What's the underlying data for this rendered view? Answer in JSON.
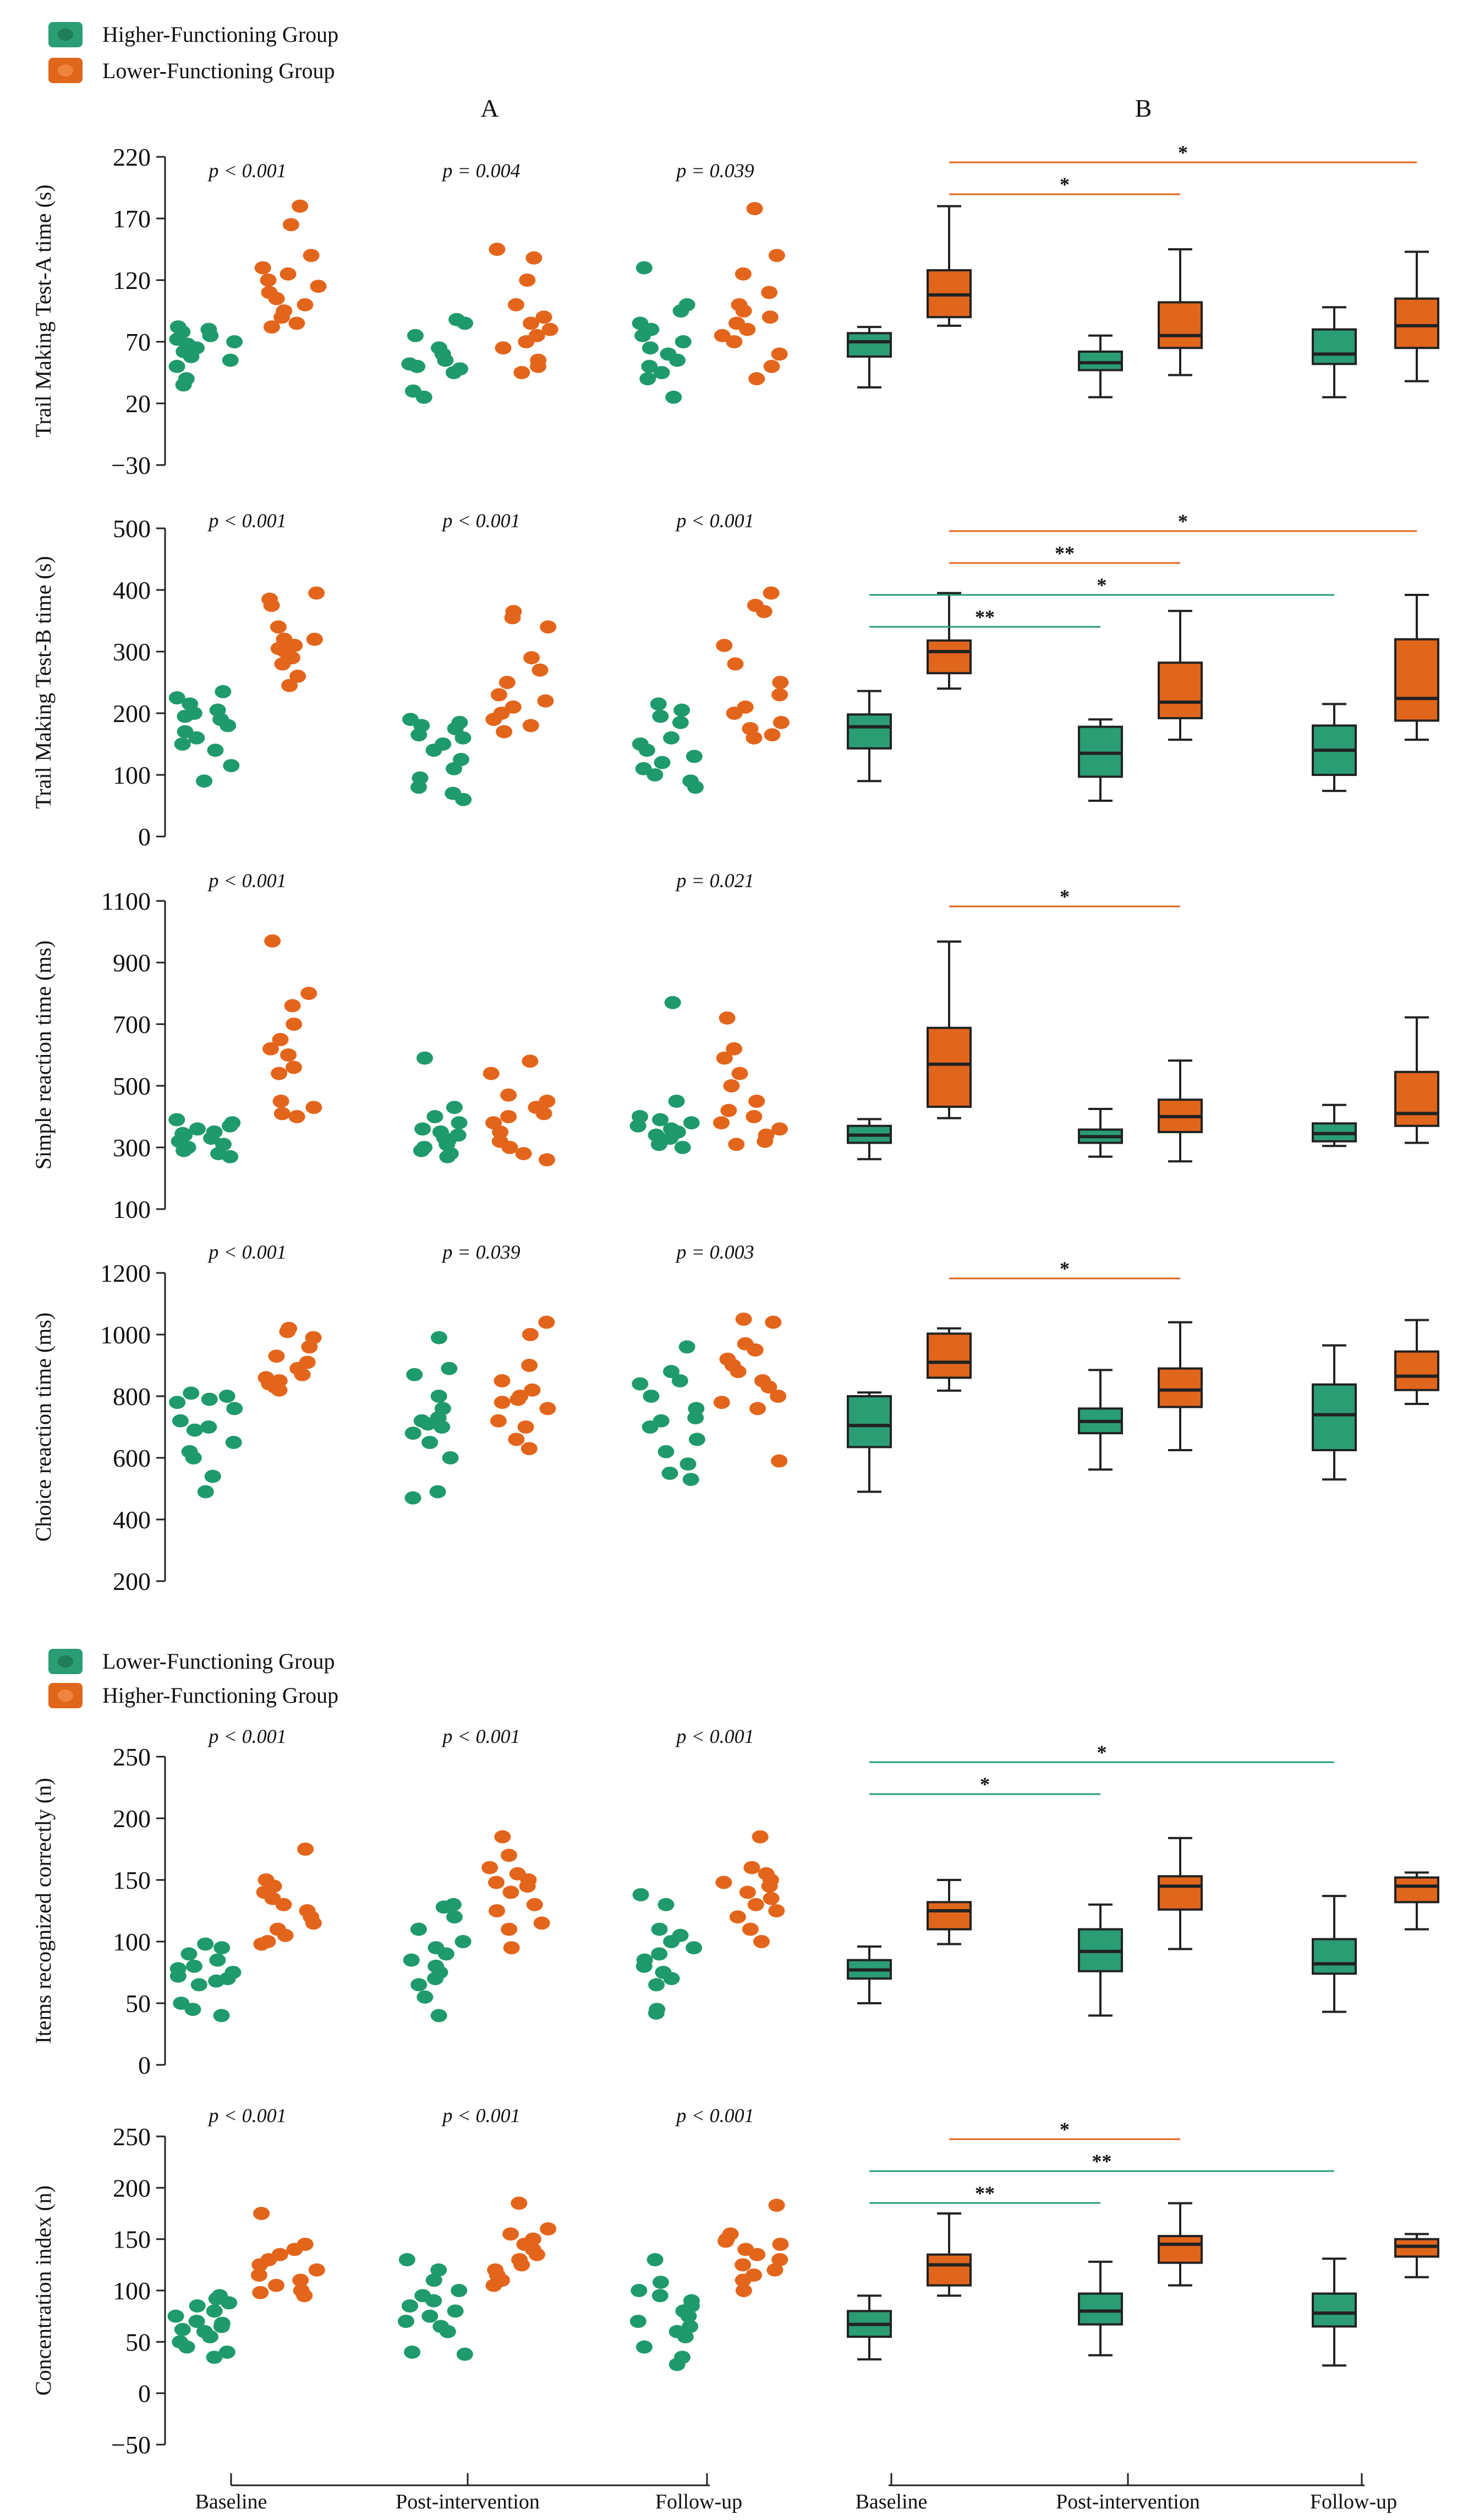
{
  "legend1": {
    "items": [
      {
        "label": "Higher-Functioning Group",
        "color": "#2a9d74"
      },
      {
        "label": "Lower-Functioning Group",
        "color": "#e0661c"
      }
    ]
  },
  "legend2": {
    "items": [
      {
        "label": "Lower-Functioning Group",
        "color": "#2a9d74"
      },
      {
        "label": "Higher-Functioning Group",
        "color": "#e0661c"
      }
    ]
  },
  "panel_labels": {
    "a": "A",
    "b": "B"
  },
  "x_labels_left": [
    "Baseline",
    "Post-intervention",
    "Follow-up"
  ],
  "x_labels_right": [
    "Baseline",
    "Post-intervention",
    "Follow-up"
  ],
  "colors": {
    "green": "#2a9d74",
    "orange": "#e0661c",
    "axis": "#222222"
  },
  "chart_data": [
    {
      "type": "scatter+box",
      "ylabel": "Trail Making Test-A time (s)",
      "ylim": [
        -30,
        220
      ],
      "yticks": [
        220,
        170,
        120,
        70,
        20,
        -30
      ],
      "ytick_labels": [
        "220",
        "170",
        "120",
        "70",
        "20",
        "−30"
      ],
      "p_values": [
        "p < 0.001",
        "p = 0.004",
        "p = 0.039"
      ],
      "scatter": [
        {
          "green": [
            80,
            78,
            75,
            72,
            70,
            68,
            65,
            62,
            58,
            55,
            50,
            40,
            35,
            82
          ],
          "orange": [
            180,
            165,
            140,
            130,
            125,
            115,
            110,
            105,
            100,
            95,
            90,
            85,
            82,
            120
          ]
        },
        {
          "green": [
            88,
            85,
            75,
            65,
            60,
            55,
            52,
            50,
            48,
            45,
            30,
            25
          ],
          "orange": [
            145,
            138,
            120,
            100,
            90,
            85,
            80,
            75,
            70,
            65,
            55,
            50,
            45
          ]
        },
        {
          "green": [
            130,
            100,
            95,
            85,
            80,
            75,
            70,
            65,
            60,
            55,
            50,
            45,
            40,
            25
          ],
          "orange": [
            178,
            140,
            125,
            110,
            100,
            95,
            90,
            85,
            80,
            75,
            70,
            60,
            50,
            40
          ]
        }
      ],
      "boxes": [
        {
          "green": [
            33,
            58,
            70,
            77,
            82
          ],
          "orange": [
            83,
            90,
            108,
            128,
            180
          ]
        },
        {
          "green": [
            25,
            47,
            53,
            62,
            75
          ],
          "orange": [
            43,
            65,
            75,
            102,
            145
          ]
        },
        {
          "green": [
            25,
            52,
            60,
            80,
            98
          ],
          "orange": [
            38,
            65,
            83,
            105,
            143
          ]
        }
      ],
      "sig": [
        {
          "from": 0,
          "to": 2,
          "label": "*",
          "color": "orange"
        },
        {
          "from": 0,
          "to": 1,
          "label": "*",
          "color": "orange"
        }
      ]
    },
    {
      "type": "scatter+box",
      "ylabel": "Trail Making Test-B time (s)",
      "ylim": [
        0,
        500
      ],
      "yticks": [
        500,
        400,
        300,
        200,
        100,
        0
      ],
      "ytick_labels": [
        "500",
        "400",
        "300",
        "200",
        "100",
        "0"
      ],
      "p_values": [
        "p < 0.001",
        "p < 0.001",
        "p < 0.001"
      ],
      "scatter": [
        {
          "green": [
            235,
            225,
            215,
            205,
            200,
            195,
            190,
            180,
            170,
            160,
            150,
            140,
            115,
            90
          ],
          "orange": [
            395,
            385,
            375,
            340,
            320,
            310,
            305,
            300,
            290,
            280,
            260,
            245,
            320
          ]
        },
        {
          "green": [
            190,
            185,
            175,
            165,
            160,
            150,
            140,
            125,
            110,
            95,
            80,
            70,
            60,
            180
          ],
          "orange": [
            365,
            355,
            340,
            290,
            270,
            250,
            230,
            220,
            210,
            200,
            190,
            180,
            170
          ]
        },
        {
          "green": [
            215,
            205,
            195,
            185,
            160,
            150,
            140,
            130,
            120,
            110,
            100,
            90,
            80
          ],
          "orange": [
            395,
            375,
            365,
            310,
            280,
            250,
            230,
            210,
            200,
            185,
            175,
            165,
            160
          ]
        }
      ],
      "boxes": [
        {
          "green": [
            90,
            143,
            178,
            198,
            236
          ],
          "orange": [
            240,
            265,
            300,
            318,
            395
          ]
        },
        {
          "green": [
            58,
            97,
            135,
            178,
            190
          ],
          "orange": [
            157,
            192,
            218,
            282,
            366
          ]
        },
        {
          "green": [
            74,
            100,
            140,
            180,
            215
          ],
          "orange": [
            157,
            188,
            224,
            320,
            392
          ]
        }
      ],
      "sig": [
        {
          "from": 0,
          "to": 2,
          "label": "*",
          "color": "orange"
        },
        {
          "from": 0,
          "to": 1,
          "label": "**",
          "color": "orange"
        },
        {
          "from": 0,
          "to": 2,
          "label": "*",
          "color": "green"
        },
        {
          "from": 0,
          "to": 1,
          "label": "**",
          "color": "green"
        }
      ]
    },
    {
      "type": "scatter+box",
      "ylabel": "Simple reaction time (ms)",
      "ylim": [
        100,
        1100
      ],
      "yticks": [
        1100,
        900,
        700,
        500,
        300,
        100
      ],
      "ytick_labels": [
        "1100",
        "900",
        "700",
        "500",
        "300",
        "100"
      ],
      "p_values": [
        "p < 0.001",
        "",
        "p = 0.021"
      ],
      "scatter": [
        {
          "green": [
            390,
            380,
            370,
            360,
            350,
            345,
            340,
            330,
            320,
            310,
            300,
            290,
            280,
            270
          ],
          "orange": [
            970,
            800,
            760,
            700,
            650,
            620,
            600,
            560,
            540,
            450,
            430,
            410,
            400
          ]
        },
        {
          "green": [
            590,
            430,
            400,
            380,
            360,
            350,
            340,
            330,
            320,
            310,
            300,
            290,
            280,
            270
          ],
          "orange": [
            580,
            540,
            470,
            450,
            430,
            410,
            400,
            380,
            350,
            320,
            300,
            280,
            260
          ]
        },
        {
          "green": [
            770,
            450,
            400,
            390,
            380,
            370,
            360,
            350,
            340,
            330,
            320,
            310,
            300
          ],
          "orange": [
            720,
            620,
            590,
            540,
            500,
            450,
            420,
            400,
            380,
            360,
            340,
            320,
            310
          ]
        }
      ],
      "boxes": [
        {
          "green": [
            262,
            315,
            340,
            370,
            392
          ],
          "orange": [
            395,
            432,
            570,
            688,
            968
          ]
        },
        {
          "green": [
            270,
            315,
            335,
            358,
            425
          ],
          "orange": [
            255,
            350,
            400,
            455,
            582
          ]
        },
        {
          "green": [
            305,
            320,
            345,
            378,
            438
          ],
          "orange": [
            315,
            370,
            410,
            545,
            722
          ]
        }
      ],
      "sig": [
        {
          "from": 0,
          "to": 1,
          "label": "*",
          "color": "orange"
        }
      ]
    },
    {
      "type": "scatter+box",
      "ylabel": "Choice reaction time (ms)",
      "ylim": [
        200,
        1200
      ],
      "yticks": [
        1200,
        1000,
        800,
        600,
        400,
        200
      ],
      "ytick_labels": [
        "1200",
        "1000",
        "800",
        "600",
        "400",
        "200"
      ],
      "p_values": [
        "p < 0.001",
        "p = 0.039",
        "p = 0.003"
      ],
      "scatter": [
        {
          "green": [
            810,
            800,
            790,
            780,
            760,
            720,
            700,
            690,
            650,
            620,
            600,
            540,
            490
          ],
          "orange": [
            1020,
            1010,
            990,
            960,
            930,
            910,
            890,
            870,
            860,
            850,
            840,
            830,
            820
          ]
        },
        {
          "green": [
            990,
            890,
            870,
            800,
            760,
            730,
            720,
            710,
            700,
            680,
            650,
            600,
            490,
            470
          ],
          "orange": [
            1040,
            1000,
            900,
            850,
            820,
            800,
            790,
            780,
            760,
            720,
            700,
            660,
            630
          ]
        },
        {
          "green": [
            960,
            880,
            850,
            840,
            800,
            760,
            730,
            720,
            700,
            660,
            620,
            580,
            550,
            530
          ],
          "orange": [
            1050,
            1040,
            970,
            950,
            920,
            900,
            880,
            850,
            830,
            800,
            780,
            760,
            590
          ]
        }
      ],
      "boxes": [
        {
          "green": [
            490,
            635,
            705,
            800,
            812
          ],
          "orange": [
            818,
            860,
            910,
            1003,
            1020
          ]
        },
        {
          "green": [
            562,
            680,
            718,
            760,
            885
          ],
          "orange": [
            625,
            765,
            820,
            890,
            1040
          ]
        },
        {
          "green": [
            530,
            625,
            740,
            838,
            965
          ],
          "orange": [
            775,
            820,
            865,
            945,
            1047
          ]
        }
      ],
      "sig": [
        {
          "from": 0,
          "to": 1,
          "label": "*",
          "color": "orange"
        }
      ]
    },
    {
      "type": "scatter+box",
      "ylabel": "Items recognized correctly (n)",
      "ylim": [
        0,
        250
      ],
      "yticks": [
        250,
        200,
        150,
        100,
        50,
        0
      ],
      "ytick_labels": [
        "250",
        "200",
        "150",
        "100",
        "50",
        "0"
      ],
      "p_values": [
        "p < 0.001",
        "p < 0.001",
        "p < 0.001"
      ],
      "scatter": [
        {
          "green": [
            98,
            95,
            90,
            85,
            80,
            78,
            75,
            72,
            70,
            68,
            65,
            50,
            45,
            40
          ],
          "orange": [
            175,
            150,
            145,
            140,
            135,
            130,
            125,
            120,
            115,
            110,
            105,
            100,
            98
          ]
        },
        {
          "green": [
            130,
            128,
            120,
            110,
            100,
            95,
            90,
            85,
            80,
            75,
            70,
            65,
            55,
            40
          ],
          "orange": [
            185,
            170,
            160,
            155,
            150,
            148,
            145,
            140,
            130,
            125,
            115,
            110,
            95
          ]
        },
        {
          "green": [
            138,
            130,
            110,
            105,
            100,
            95,
            90,
            85,
            80,
            75,
            70,
            65,
            45,
            42
          ],
          "orange": [
            185,
            160,
            155,
            150,
            148,
            145,
            140,
            135,
            130,
            125,
            120,
            110,
            100
          ]
        }
      ],
      "boxes": [
        {
          "green": [
            50,
            70,
            77,
            85,
            96
          ],
          "orange": [
            98,
            110,
            125,
            132,
            150
          ]
        },
        {
          "green": [
            40,
            76,
            92,
            110,
            130
          ],
          "orange": [
            94,
            126,
            145,
            153,
            184
          ]
        },
        {
          "green": [
            43,
            74,
            82,
            102,
            137
          ],
          "orange": [
            110,
            132,
            145,
            152,
            156
          ]
        }
      ],
      "sig": [
        {
          "from": 0,
          "to": 2,
          "label": "*",
          "color": "green"
        },
        {
          "from": 0,
          "to": 1,
          "label": "*",
          "color": "green"
        }
      ]
    },
    {
      "type": "scatter+box",
      "ylabel": "Concentration index (n)",
      "ylim": [
        -50,
        250
      ],
      "yticks": [
        250,
        200,
        150,
        100,
        50,
        0,
        -50
      ],
      "ytick_labels": [
        "250",
        "200",
        "150",
        "100",
        "50",
        "0",
        "−50"
      ],
      "p_values": [
        "p < 0.001",
        "p < 0.001",
        "p < 0.001"
      ],
      "scatter": [
        {
          "green": [
            95,
            92,
            88,
            85,
            80,
            75,
            70,
            68,
            65,
            62,
            60,
            55,
            50,
            45,
            40,
            35
          ],
          "orange": [
            175,
            145,
            140,
            135,
            130,
            125,
            120,
            115,
            110,
            105,
            100,
            98,
            95
          ]
        },
        {
          "green": [
            130,
            120,
            110,
            100,
            95,
            90,
            85,
            80,
            75,
            70,
            65,
            60,
            40,
            38
          ],
          "orange": [
            185,
            160,
            155,
            150,
            145,
            140,
            135,
            130,
            125,
            120,
            115,
            110,
            105
          ]
        },
        {
          "green": [
            130,
            108,
            100,
            95,
            90,
            85,
            80,
            75,
            70,
            65,
            60,
            55,
            45,
            35,
            28
          ],
          "orange": [
            183,
            155,
            150,
            148,
            145,
            140,
            135,
            130,
            125,
            120,
            115,
            110,
            100
          ]
        }
      ],
      "boxes": [
        {
          "green": [
            33,
            55,
            67,
            80,
            95
          ],
          "orange": [
            95,
            105,
            125,
            135,
            175
          ]
        },
        {
          "green": [
            37,
            67,
            80,
            97,
            128
          ],
          "orange": [
            105,
            127,
            145,
            153,
            185
          ]
        },
        {
          "green": [
            27,
            65,
            78,
            97,
            131
          ],
          "orange": [
            113,
            133,
            143,
            150,
            155
          ]
        }
      ],
      "sig": [
        {
          "from": 0,
          "to": 1,
          "label": "*",
          "color": "orange"
        },
        {
          "from": 0,
          "to": 2,
          "label": "**",
          "color": "green"
        },
        {
          "from": 0,
          "to": 1,
          "label": "**",
          "color": "green"
        }
      ]
    }
  ]
}
